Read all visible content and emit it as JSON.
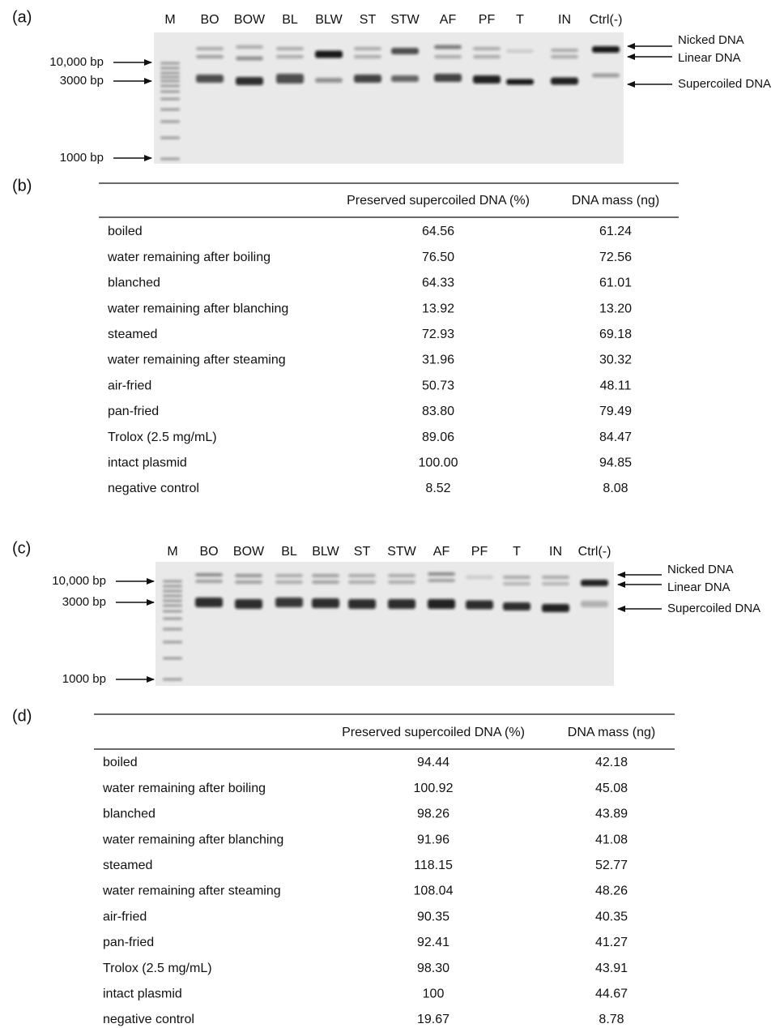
{
  "gel_a": {
    "panel_label": "(a)",
    "lanes": [
      "M",
      "BO",
      "BOW",
      "BL",
      "BLW",
      "ST",
      "STW",
      "AF",
      "PF",
      "T",
      "IN",
      "Ctrl(-)"
    ],
    "size_markers": [
      "10,000 bp",
      "3000 bp",
      "1000 bp"
    ],
    "band_types": [
      "Nicked DNA",
      "Linear DNA",
      "Supercoiled DNA"
    ]
  },
  "table_b": {
    "panel_label": "(b)",
    "header": {
      "col1": "Preserved supercoiled DNA (%)",
      "col2": "DNA mass (ng)"
    },
    "rows": [
      [
        "boiled",
        "64.56",
        "61.24"
      ],
      [
        "water remaining after boiling",
        "76.50",
        "72.56"
      ],
      [
        "blanched",
        "64.33",
        "61.01"
      ],
      [
        "water remaining after blanching",
        "13.92",
        "13.20"
      ],
      [
        "steamed",
        "72.93",
        "69.18"
      ],
      [
        "water remaining after steaming",
        "31.96",
        "30.32"
      ],
      [
        "air-fried",
        "50.73",
        "48.11"
      ],
      [
        "pan-fried",
        "83.80",
        "79.49"
      ],
      [
        "Trolox (2.5 mg/mL)",
        "89.06",
        "84.47"
      ],
      [
        "intact plasmid",
        "100.00",
        "94.85"
      ],
      [
        "negative control",
        "8.52",
        "8.08"
      ]
    ]
  },
  "gel_c": {
    "panel_label": "(c)",
    "lanes": [
      "M",
      "BO",
      "BOW",
      "BL",
      "BLW",
      "ST",
      "STW",
      "AF",
      "PF",
      "T",
      "IN",
      "Ctrl(-)"
    ],
    "size_markers": [
      "10,000 bp",
      "3000 bp",
      "1000 bp"
    ],
    "band_types": [
      "Nicked DNA",
      "Linear DNA",
      "Supercoiled DNA"
    ]
  },
  "table_d": {
    "panel_label": "(d)",
    "header": {
      "col1": "Preserved supercoiled DNA (%)",
      "col2": "DNA mass (ng)"
    },
    "rows": [
      [
        "boiled",
        "94.44",
        "42.18"
      ],
      [
        "water remaining after boiling",
        "100.92",
        "45.08"
      ],
      [
        "blanched",
        "98.26",
        "43.89"
      ],
      [
        "water remaining after blanching",
        "91.96",
        "41.08"
      ],
      [
        "steamed",
        "118.15",
        "52.77"
      ],
      [
        "water remaining after steaming",
        "108.04",
        "48.26"
      ],
      [
        "air-fried",
        "90.35",
        "40.35"
      ],
      [
        "pan-fried",
        "92.41",
        "41.27"
      ],
      [
        "Trolox (2.5 mg/mL)",
        "98.30",
        "43.91"
      ],
      [
        "intact plasmid",
        "100",
        "44.67"
      ],
      [
        "negative control",
        "19.67",
        "8.78"
      ]
    ]
  }
}
